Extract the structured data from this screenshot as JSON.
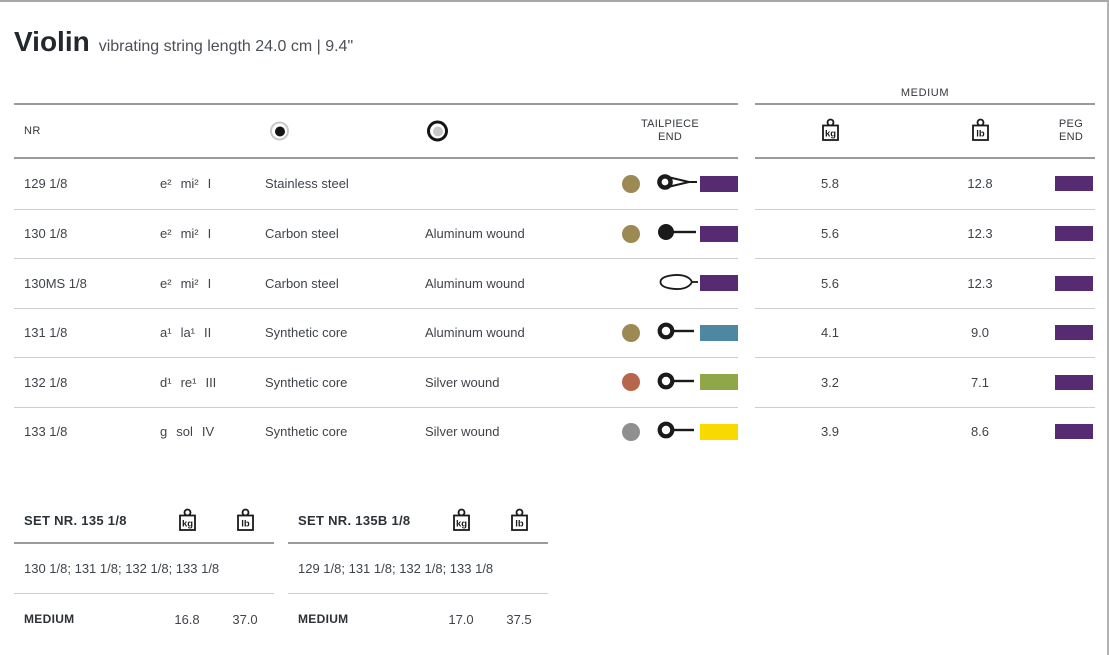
{
  "page": {
    "title": "Violin",
    "subtitle": "vibrating string length 24.0 cm  |  9.4\""
  },
  "table": {
    "gauge_group_label": "MEDIUM",
    "headers": {
      "nr": "NR",
      "core_icon": "core-material-icon",
      "winding_icon": "winding-material-icon",
      "tailpiece": [
        "TAILPIECE",
        "END"
      ],
      "kg": "kg",
      "lb": "lb",
      "peg": [
        "PEG",
        "END"
      ]
    },
    "rows": [
      {
        "nr": "129 1/8",
        "note": [
          "e²",
          "mi²",
          "I"
        ],
        "core": "Stainless steel",
        "winding": "",
        "dot": "#9c8a55",
        "tail_icon": "ball-or-loop-end",
        "tail_color": "#562b72",
        "kg": "5.8",
        "lb": "12.8",
        "peg": "#562b72"
      },
      {
        "nr": "130 1/8",
        "note": [
          "e²",
          "mi²",
          "I"
        ],
        "core": "Carbon steel",
        "winding": "Aluminum wound",
        "dot": "#9c8a55",
        "tail_icon": "ball-end",
        "tail_color": "#562b72",
        "kg": "5.6",
        "lb": "12.3",
        "peg": "#562b72"
      },
      {
        "nr": "130MS 1/8",
        "note": [
          "e²",
          "mi²",
          "I"
        ],
        "core": "Carbon steel",
        "winding": "Aluminum wound",
        "dot": null,
        "tail_icon": "loop-end",
        "tail_color": "#562b72",
        "kg": "5.6",
        "lb": "12.3",
        "peg": "#562b72"
      },
      {
        "nr": "131 1/8",
        "note": [
          "a¹",
          "la¹",
          "II"
        ],
        "core": "Synthetic core",
        "winding": "Aluminum wound",
        "dot": "#9c8a55",
        "tail_icon": "removable-ball-end",
        "tail_color": "#4d87a1",
        "kg": "4.1",
        "lb": "9.0",
        "peg": "#562b72"
      },
      {
        "nr": "132 1/8",
        "note": [
          "d¹",
          "re¹",
          "III"
        ],
        "core": "Synthetic core",
        "winding": "Silver wound",
        "dot": "#b5664c",
        "tail_icon": "removable-ball-end",
        "tail_color": "#8fa748",
        "kg": "3.2",
        "lb": "7.1",
        "peg": "#562b72"
      },
      {
        "nr": "133 1/8",
        "note": [
          "g",
          "sol",
          "IV"
        ],
        "core": "Synthetic core",
        "winding": "Silver wound",
        "dot": "#8f8f8f",
        "tail_icon": "removable-ball-end",
        "tail_color": "#f8da00",
        "kg": "3.9",
        "lb": "8.6",
        "peg": "#562b72"
      }
    ]
  },
  "sets": [
    {
      "title": "SET NR. 135 1/8",
      "kg_unit": "kg",
      "lb_unit": "lb",
      "contents": "130 1/8; 131 1/8; 132 1/8; 133 1/8",
      "gauge": "MEDIUM",
      "kg": "16.8",
      "lb": "37.0"
    },
    {
      "title": "SET NR. 135B 1/8",
      "kg_unit": "kg",
      "lb_unit": "lb",
      "contents": "129 1/8; 131 1/8; 132 1/8; 133 1/8",
      "gauge": "MEDIUM",
      "kg": "17.0",
      "lb": "37.5"
    }
  ],
  "colors": {
    "peg_end_purple": "#562b72",
    "tailpiece_blue": "#4d87a1",
    "tailpiece_green": "#8fa748",
    "tailpiece_yellow": "#f8da00",
    "string_dot_olive": "#9c8a55",
    "string_dot_rust": "#b5664c",
    "string_dot_gray": "#8f8f8f",
    "rule_dark": "#9b9b9b",
    "rule_light": "#cdcdcd"
  }
}
